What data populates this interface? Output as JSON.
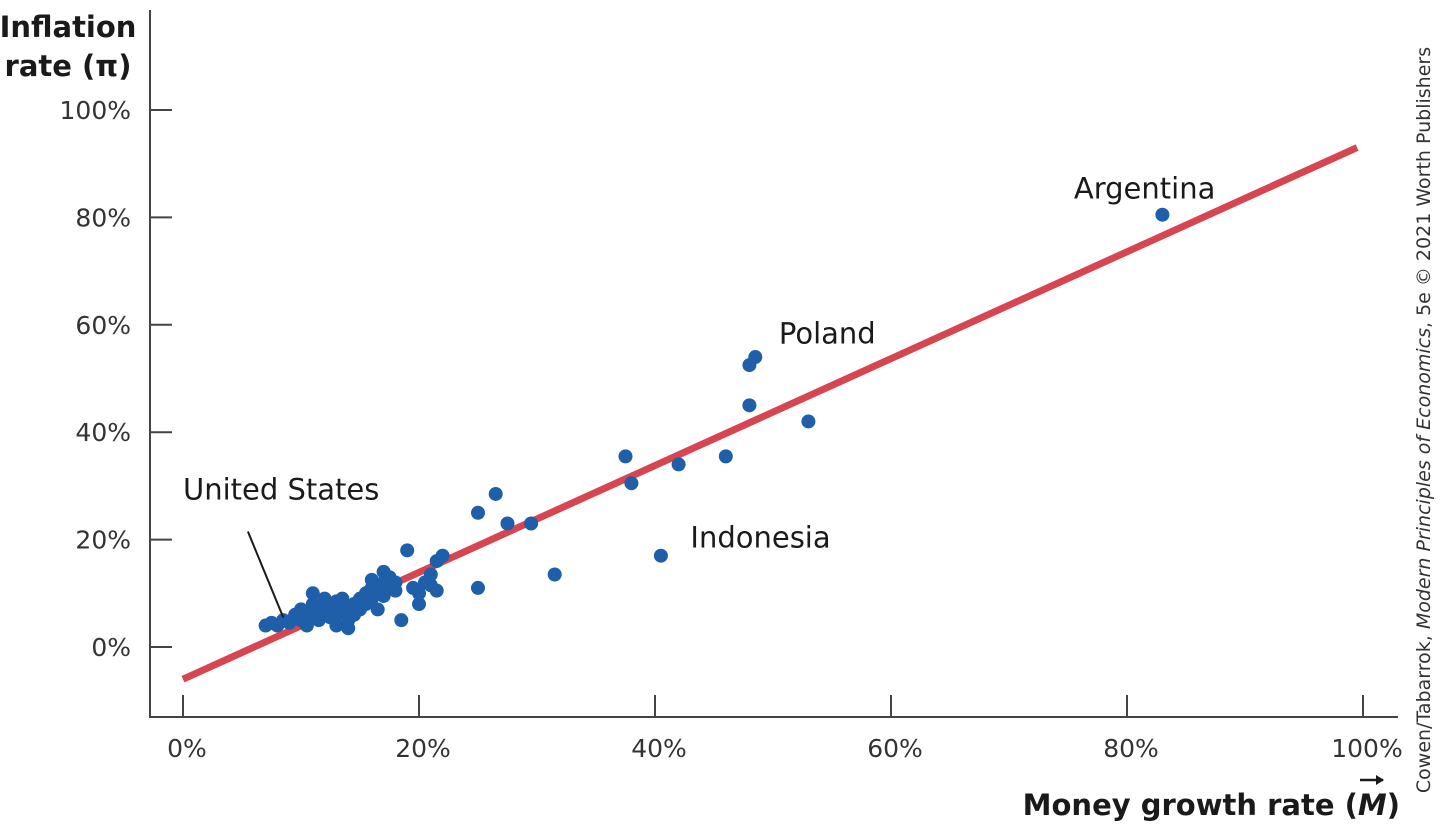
{
  "chart_data": {
    "type": "scatter",
    "title": "",
    "ylabel_lines": [
      "Inflation",
      "rate (π)"
    ],
    "xlabel_prefix": "Money growth rate (",
    "xlabel_symbol": "M",
    "xlabel_suffix": ")",
    "xlim": [
      0,
      100
    ],
    "ylim": [
      -13,
      118
    ],
    "x_ticks": [
      0,
      20,
      40,
      60,
      80,
      100
    ],
    "x_tick_labels": [
      "0%",
      "20%",
      "40%",
      "60%",
      "80%",
      "100%"
    ],
    "y_ticks": [
      0,
      20,
      40,
      60,
      80,
      100
    ],
    "y_tick_labels": [
      "0%",
      "20%",
      "40%",
      "60%",
      "80%",
      "100%"
    ],
    "grid": false,
    "legend": "none",
    "colors": {
      "points": "#1f5ea8",
      "line": "#d64550",
      "axes": "#444444"
    },
    "fit_line": {
      "x": [
        0,
        99.5
      ],
      "y": [
        -6,
        93
      ]
    },
    "points": [
      [
        7,
        4
      ],
      [
        7.5,
        4.5
      ],
      [
        8,
        4
      ],
      [
        8.5,
        5
      ],
      [
        9,
        4.5
      ],
      [
        9.5,
        6
      ],
      [
        10,
        7
      ],
      [
        10,
        5
      ],
      [
        10.5,
        4
      ],
      [
        10.5,
        6.5
      ],
      [
        11,
        10
      ],
      [
        11,
        8
      ],
      [
        11,
        6
      ],
      [
        11.5,
        7.5
      ],
      [
        11.5,
        5
      ],
      [
        12,
        9
      ],
      [
        12,
        6.5
      ],
      [
        12.5,
        8
      ],
      [
        12.5,
        5.5
      ],
      [
        13,
        8.5
      ],
      [
        13,
        6
      ],
      [
        13,
        4
      ],
      [
        13.5,
        9
      ],
      [
        13.5,
        7
      ],
      [
        14,
        7.5
      ],
      [
        14,
        5
      ],
      [
        14,
        3.5
      ],
      [
        14.5,
        8
      ],
      [
        14.5,
        6
      ],
      [
        15,
        9
      ],
      [
        15,
        7
      ],
      [
        15.5,
        8
      ],
      [
        15.5,
        10
      ],
      [
        16,
        9
      ],
      [
        16,
        11
      ],
      [
        16,
        12.5
      ],
      [
        16.5,
        10
      ],
      [
        16.5,
        7
      ],
      [
        17,
        12
      ],
      [
        17,
        14
      ],
      [
        17,
        9.5
      ],
      [
        17.5,
        11
      ],
      [
        17.5,
        13
      ],
      [
        18,
        10.5
      ],
      [
        18,
        12
      ],
      [
        18.5,
        5
      ],
      [
        19,
        18
      ],
      [
        19.5,
        11
      ],
      [
        20,
        8
      ],
      [
        20,
        10
      ],
      [
        20.5,
        12
      ],
      [
        21,
        13.5
      ],
      [
        21,
        11.5
      ],
      [
        21.5,
        16
      ],
      [
        21.5,
        10.5
      ],
      [
        22,
        17
      ],
      [
        25,
        25
      ],
      [
        25,
        11
      ],
      [
        26.5,
        28.5
      ],
      [
        27.5,
        23
      ],
      [
        29.5,
        23
      ],
      [
        31.5,
        13.5
      ],
      [
        37.5,
        35.5
      ],
      [
        38,
        30.5
      ],
      [
        40.5,
        17
      ],
      [
        42,
        34
      ],
      [
        46,
        35.5
      ],
      [
        48,
        45
      ],
      [
        48,
        52.5
      ],
      [
        48.5,
        54
      ],
      [
        53,
        42
      ],
      [
        83,
        80.5
      ]
    ],
    "annotations": [
      {
        "text": "Argentina",
        "x": 75.5,
        "y": 83.5
      },
      {
        "text": "Poland",
        "x": 50.5,
        "y": 56.5
      },
      {
        "text": "Indonesia",
        "x": 43,
        "y": 18.5
      },
      {
        "text": "United States",
        "x": 0,
        "y": 27.5
      }
    ],
    "us_leader": {
      "x1": 5.5,
      "y1": 21.5,
      "x2": 8.5,
      "y2": 5.5
    },
    "credit_parts": [
      {
        "text": "Cowen/Tabarrok, ",
        "italic": false
      },
      {
        "text": "Modern Principles of Economics",
        "italic": true
      },
      {
        "text": ", 5e © 2021 Worth Publishers",
        "italic": false
      }
    ]
  }
}
